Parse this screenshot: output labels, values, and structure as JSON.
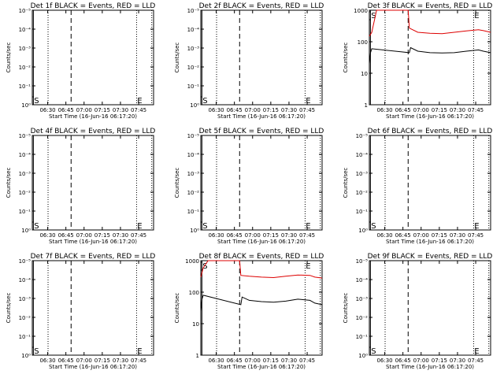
{
  "chart_data": [
    {
      "type": "line",
      "title": "Det 1f BLACK = Events, RED = LLD",
      "xlabel": "Start Time (16-Jun-16 06:17:20)",
      "ylabel": "Counts/sec",
      "x_ticks": [
        "06:30",
        "06:45",
        "07:00",
        "07:15",
        "07:30",
        "07:45"
      ],
      "y_ticks": [
        "10⁰",
        "10⁻¹",
        "10⁻²",
        "10⁻³",
        "10⁻⁴",
        "10⁻⁵"
      ],
      "markers": {
        "start": "S",
        "end": "E",
        "start_index": 0,
        "end_index": 0
      },
      "series": []
    },
    {
      "type": "line",
      "title": "Det 2f BLACK = Events, RED = LLD",
      "xlabel": "Start Time (16-Jun-16 06:17:20)",
      "ylabel": "Counts/sec",
      "x_ticks": [
        "06:30",
        "06:45",
        "07:00",
        "07:15",
        "07:30",
        "07:45"
      ],
      "y_ticks": [
        "10⁰",
        "10⁻¹",
        "10⁻²",
        "10⁻³",
        "10⁻⁴",
        "10⁻⁵"
      ],
      "markers": {
        "start": "S",
        "end": "E",
        "start_index": 0,
        "end_index": 0
      },
      "series": []
    },
    {
      "type": "line",
      "title": "Det 3f BLACK = Events, RED = LLD",
      "xlabel": "Start Time (16-Jun-16 06:17:20)",
      "ylabel": "Counts/sec",
      "x_ticks": [
        "06:30",
        "06:45",
        "07:00",
        "07:15",
        "07:30",
        "07:45"
      ],
      "y_ticks": [
        "1",
        "10",
        "100",
        "1000"
      ],
      "markers": {
        "start": "S",
        "end": "E",
        "start_index": 0,
        "end_index": 0
      },
      "series": [
        {
          "name": "LLD",
          "color": "#dd0000",
          "x_minutes": [
            0,
            2,
            6,
            9,
            14,
            20,
            27,
            32,
            33,
            40,
            50,
            60,
            70,
            80,
            90,
            94,
            100
          ],
          "values": [
            150,
            200,
            1000,
            1000,
            1000,
            1000,
            1000,
            1000,
            270,
            200,
            185,
            180,
            200,
            220,
            240,
            225,
            200
          ]
        },
        {
          "name": "Events",
          "color": "#000000",
          "x_minutes": [
            0,
            1,
            2,
            33,
            34,
            40,
            50,
            60,
            70,
            80,
            90,
            94,
            100
          ],
          "values": [
            20,
            45,
            60,
            45,
            65,
            50,
            45,
            44,
            45,
            50,
            55,
            50,
            45
          ]
        }
      ]
    },
    {
      "type": "line",
      "title": "Det 4f BLACK = Events, RED = LLD",
      "xlabel": "Start Time (16-Jun-16 06:17:20)",
      "ylabel": "Counts/sec",
      "x_ticks": [
        "06:30",
        "06:45",
        "07:00",
        "07:15",
        "07:30",
        "07:45"
      ],
      "y_ticks": [
        "10⁰",
        "10⁻¹",
        "10⁻²",
        "10⁻³",
        "10⁻⁴",
        "10⁻⁵"
      ],
      "markers": {
        "start": "S",
        "end": "E",
        "start_index": 0,
        "end_index": 0
      },
      "series": []
    },
    {
      "type": "line",
      "title": "Det 5f BLACK = Events, RED = LLD",
      "xlabel": "Start Time (16-Jun-16 06:17:20)",
      "ylabel": "Counts/sec",
      "x_ticks": [
        "06:30",
        "06:45",
        "07:00",
        "07:15",
        "07:30",
        "07:45"
      ],
      "y_ticks": [
        "10⁰",
        "10⁻¹",
        "10⁻²",
        "10⁻³",
        "10⁻⁴",
        "10⁻⁵"
      ],
      "markers": {
        "start": "S",
        "end": "E",
        "start_index": 0,
        "end_index": 0
      },
      "series": []
    },
    {
      "type": "line",
      "title": "Det 6f BLACK = Events, RED = LLD",
      "xlabel": "Start Time (16-Jun-16 06:17:20)",
      "ylabel": "Counts/sec",
      "x_ticks": [
        "06:30",
        "06:45",
        "07:00",
        "07:15",
        "07:30",
        "07:45"
      ],
      "y_ticks": [
        "10⁰",
        "10⁻¹",
        "10⁻²",
        "10⁻³",
        "10⁻⁴",
        "10⁻⁵"
      ],
      "markers": {
        "start": "S",
        "end": "E",
        "start_index": 0,
        "end_index": 0
      },
      "series": []
    },
    {
      "type": "line",
      "title": "Det 7f BLACK = Events, RED = LLD",
      "xlabel": "Start Time (16-Jun-16 06:17:20)",
      "ylabel": "Counts/sec",
      "x_ticks": [
        "06:30",
        "06:45",
        "07:00",
        "07:15",
        "07:30",
        "07:45"
      ],
      "y_ticks": [
        "10⁰",
        "10⁻¹",
        "10⁻²",
        "10⁻³",
        "10⁻⁴",
        "10⁻⁵"
      ],
      "markers": {
        "start": "S",
        "end": "E",
        "start_index": 0,
        "end_index": 0
      },
      "series": []
    },
    {
      "type": "line",
      "title": "Det 8f BLACK = Events, RED = LLD",
      "xlabel": "Start Time (16-Jun-16 06:17:20)",
      "ylabel": "Counts/sec",
      "x_ticks": [
        "06:30",
        "06:45",
        "07:00",
        "07:15",
        "07:30",
        "07:45"
      ],
      "y_ticks": [
        "1",
        "10",
        "100",
        "1000"
      ],
      "markers": {
        "start": "S",
        "end": "E",
        "start_index": 0,
        "end_index": 0
      },
      "series": [
        {
          "name": "LLD",
          "color": "#dd0000",
          "x_minutes": [
            0,
            2,
            6,
            9,
            14,
            20,
            27,
            32,
            33,
            40,
            50,
            60,
            70,
            80,
            90,
            94,
            100
          ],
          "values": [
            300,
            600,
            1000,
            1000,
            1000,
            1000,
            1000,
            1000,
            340,
            320,
            300,
            290,
            320,
            350,
            340,
            300,
            280
          ]
        },
        {
          "name": "Events",
          "color": "#000000",
          "x_minutes": [
            0,
            1,
            2,
            33,
            34,
            40,
            50,
            60,
            70,
            80,
            90,
            94,
            100
          ],
          "values": [
            25,
            60,
            80,
            40,
            70,
            55,
            50,
            48,
            52,
            60,
            55,
            45,
            40
          ]
        }
      ]
    },
    {
      "type": "line",
      "title": "Det 9f BLACK = Events, RED = LLD",
      "xlabel": "Start Time (16-Jun-16 06:17:20)",
      "ylabel": "Counts/sec",
      "x_ticks": [
        "06:30",
        "06:45",
        "07:00",
        "07:15",
        "07:30",
        "07:45"
      ],
      "y_ticks": [
        "10⁰",
        "10⁻¹",
        "10⁻²",
        "10⁻³",
        "10⁻⁴",
        "10⁻⁵"
      ],
      "markers": {
        "start": "S",
        "end": "E",
        "start_index": 0,
        "end_index": 0
      },
      "series": []
    }
  ]
}
